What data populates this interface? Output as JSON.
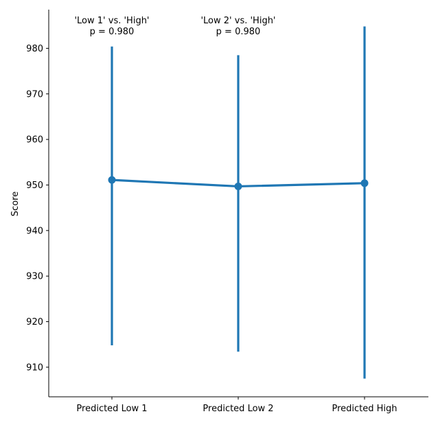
{
  "chart_data": {
    "type": "line",
    "title": "",
    "xlabel": "",
    "ylabel": "Score",
    "categories": [
      "Predicted Low 1",
      "Predicted Low 2",
      "Predicted High"
    ],
    "values": [
      951.1,
      949.7,
      950.4
    ],
    "error_bars": [
      {
        "low": 914.8,
        "high": 980.4
      },
      {
        "low": 913.4,
        "high": 978.5
      },
      {
        "low": 907.5,
        "high": 984.8
      }
    ],
    "ylim": [
      903.5,
      988.5
    ],
    "yticks": [
      910,
      920,
      930,
      940,
      950,
      960,
      970,
      980
    ],
    "grid": false,
    "color": "#1f77b4",
    "annotations": [
      {
        "category": "Predicted Low 1",
        "line1": "'Low 1' vs. 'High'",
        "line2": "p = 0.980"
      },
      {
        "category": "Predicted Low 2",
        "line1": "'Low 2' vs. 'High'",
        "line2": "p = 0.980"
      }
    ]
  }
}
